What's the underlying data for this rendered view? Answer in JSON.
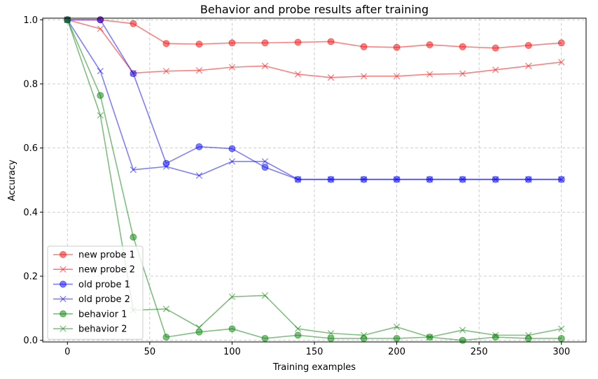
{
  "chart_data": {
    "type": "line",
    "title": "Behavior and probe results after training",
    "xlabel": "Training examples",
    "ylabel": "Accuracy",
    "xlim": [
      -15,
      315
    ],
    "ylim": [
      -0.005,
      1.005
    ],
    "xticks": [
      0,
      50,
      100,
      150,
      200,
      250,
      300
    ],
    "yticks": [
      0.0,
      0.2,
      0.4,
      0.6,
      0.8,
      1.0
    ],
    "xtick_labels": [
      "0",
      "50",
      "100",
      "150",
      "200",
      "250",
      "300"
    ],
    "ytick_labels": [
      "0.0",
      "0.2",
      "0.4",
      "0.6",
      "0.8",
      "1.0"
    ],
    "grid": true,
    "legend_position": "lower-left",
    "x": [
      0,
      20,
      40,
      60,
      80,
      100,
      120,
      140,
      160,
      180,
      200,
      220,
      240,
      260,
      280,
      300
    ],
    "series": [
      {
        "name": "new probe 1",
        "color": "#ff0000",
        "marker": "circle",
        "values": [
          1.0,
          1.0,
          0.988,
          0.926,
          0.924,
          0.928,
          0.928,
          0.93,
          0.932,
          0.916,
          0.914,
          0.922,
          0.916,
          0.912,
          0.92,
          0.928
        ]
      },
      {
        "name": "new probe 2",
        "color": "#ff0000",
        "marker": "x",
        "values": [
          1.0,
          0.972,
          0.834,
          0.84,
          0.842,
          0.852,
          0.856,
          0.83,
          0.82,
          0.824,
          0.824,
          0.83,
          0.832,
          0.844,
          0.856,
          0.868
        ]
      },
      {
        "name": "old probe 1",
        "color": "#0000ff",
        "marker": "circle",
        "values": [
          1.0,
          1.0,
          0.832,
          0.552,
          0.604,
          0.598,
          0.54,
          0.502,
          0.502,
          0.502,
          0.502,
          0.502,
          0.502,
          0.502,
          0.502,
          0.502
        ]
      },
      {
        "name": "old probe 2",
        "color": "#0000ff",
        "marker": "x",
        "values": [
          1.0,
          0.84,
          0.532,
          0.542,
          0.514,
          0.558,
          0.558,
          0.502,
          0.502,
          0.502,
          0.502,
          0.502,
          0.502,
          0.502,
          0.502,
          0.502
        ]
      },
      {
        "name": "behavior 1",
        "color": "#008000",
        "marker": "circle",
        "values": [
          1.0,
          0.764,
          0.322,
          0.01,
          0.026,
          0.036,
          0.006,
          0.016,
          0.006,
          0.006,
          0.006,
          0.01,
          0.0,
          0.01,
          0.006,
          0.006
        ]
      },
      {
        "name": "behavior 2",
        "color": "#008000",
        "marker": "x",
        "values": [
          1.0,
          0.702,
          0.094,
          0.098,
          0.04,
          0.136,
          0.14,
          0.036,
          0.022,
          0.016,
          0.042,
          0.01,
          0.032,
          0.016,
          0.016,
          0.036
        ]
      }
    ]
  }
}
